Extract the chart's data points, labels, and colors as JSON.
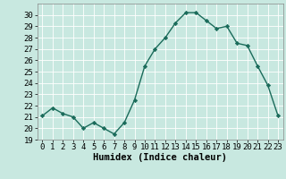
{
  "x": [
    0,
    1,
    2,
    3,
    4,
    5,
    6,
    7,
    8,
    9,
    10,
    11,
    12,
    13,
    14,
    15,
    16,
    17,
    18,
    19,
    20,
    21,
    22,
    23
  ],
  "y": [
    21.1,
    21.8,
    21.3,
    21.0,
    20.0,
    20.5,
    20.0,
    19.5,
    20.5,
    22.5,
    25.5,
    27.0,
    28.0,
    29.3,
    30.2,
    30.2,
    29.5,
    28.8,
    29.0,
    27.5,
    27.3,
    25.5,
    23.8,
    21.1
  ],
  "line_color": "#1a6b5a",
  "marker": "D",
  "marker_size": 2.2,
  "linewidth": 1.0,
  "xlabel": "Humidex (Indice chaleur)",
  "ylim": [
    19,
    31
  ],
  "xlim": [
    -0.5,
    23.5
  ],
  "yticks": [
    19,
    20,
    21,
    22,
    23,
    24,
    25,
    26,
    27,
    28,
    29,
    30
  ],
  "xtick_labels": [
    "0",
    "1",
    "2",
    "3",
    "4",
    "5",
    "6",
    "7",
    "8",
    "9",
    "10",
    "11",
    "12",
    "13",
    "14",
    "15",
    "16",
    "17",
    "18",
    "19",
    "20",
    "21",
    "22",
    "23"
  ],
  "bg_color": "#c8e8e0",
  "grid_color": "#ffffff",
  "xlabel_fontsize": 7.5,
  "tick_fontsize": 6.5
}
